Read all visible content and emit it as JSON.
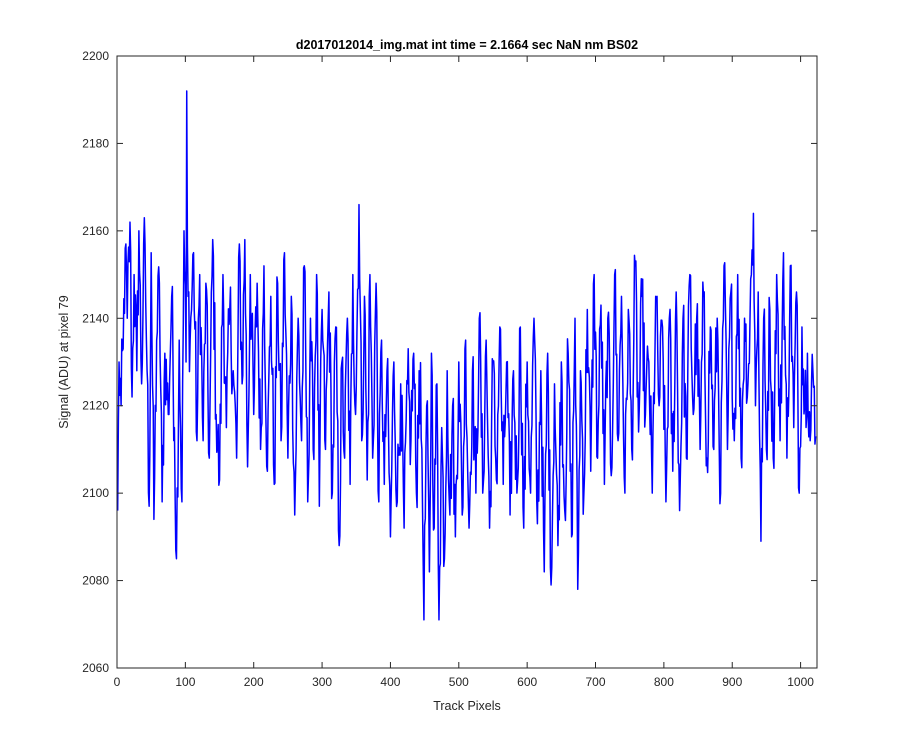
{
  "chart_data": {
    "type": "line",
    "title": "d2017012014_img.mat int time = 2.1664 sec  NaN nm BS02",
    "xlabel": "Track Pixels",
    "ylabel": "Signal (ADU) at pixel 79",
    "xlim": [
      0,
      1024
    ],
    "ylim": [
      2060,
      2200
    ],
    "x_ticks": [
      0,
      100,
      200,
      300,
      400,
      500,
      600,
      700,
      800,
      900,
      1000
    ],
    "y_ticks": [
      2060,
      2080,
      2100,
      2120,
      2140,
      2160,
      2180,
      2200
    ],
    "grid": false,
    "box": true,
    "series": [
      {
        "color": "#0000ff",
        "x_start": 1,
        "x_step": 1,
        "anchors": [
          [
            1,
            2096
          ],
          [
            3,
            2130
          ],
          [
            6,
            2120
          ],
          [
            9,
            2133
          ],
          [
            12,
            2156
          ],
          [
            15,
            2140
          ],
          [
            19,
            2162
          ],
          [
            22,
            2122
          ],
          [
            25,
            2150
          ],
          [
            29,
            2128
          ],
          [
            32,
            2160
          ],
          [
            36,
            2125
          ],
          [
            40,
            2163
          ],
          [
            44,
            2128
          ],
          [
            47,
            2097
          ],
          [
            50,
            2155
          ],
          [
            54,
            2094
          ],
          [
            58,
            2135
          ],
          [
            62,
            2148
          ],
          [
            66,
            2098
          ],
          [
            70,
            2132
          ],
          [
            75,
            2118
          ],
          [
            80,
            2145
          ],
          [
            84,
            2115
          ],
          [
            87,
            2085
          ],
          [
            91,
            2135
          ],
          [
            95,
            2098
          ],
          [
            98,
            2160
          ],
          [
            101,
            2130
          ],
          [
            102,
            2192
          ],
          [
            104,
            2145
          ],
          [
            107,
            2135
          ],
          [
            112,
            2155
          ],
          [
            117,
            2112
          ],
          [
            121,
            2150
          ],
          [
            126,
            2112
          ],
          [
            130,
            2148
          ],
          [
            135,
            2108
          ],
          [
            140,
            2158
          ],
          [
            145,
            2118
          ],
          [
            150,
            2103
          ],
          [
            155,
            2150
          ],
          [
            160,
            2115
          ],
          [
            165,
            2142
          ],
          [
            170,
            2128
          ],
          [
            175,
            2108
          ],
          [
            179,
            2157
          ],
          [
            183,
            2125
          ],
          [
            187,
            2158
          ],
          [
            191,
            2106
          ],
          [
            195,
            2150
          ],
          [
            200,
            2118
          ],
          [
            205,
            2148
          ],
          [
            210,
            2110
          ],
          [
            215,
            2152
          ],
          [
            220,
            2105
          ],
          [
            225,
            2145
          ],
          [
            230,
            2102
          ],
          [
            235,
            2148
          ],
          [
            240,
            2112
          ],
          [
            245,
            2155
          ],
          [
            250,
            2108
          ],
          [
            255,
            2145
          ],
          [
            260,
            2095
          ],
          [
            265,
            2140
          ],
          [
            270,
            2112
          ],
          [
            274,
            2152
          ],
          [
            279,
            2098
          ],
          [
            283,
            2140
          ],
          [
            287,
            2110
          ],
          [
            292,
            2150
          ],
          [
            296,
            2097
          ],
          [
            300,
            2142
          ],
          [
            305,
            2110
          ],
          [
            310,
            2146
          ],
          [
            315,
            2100
          ],
          [
            320,
            2138
          ],
          [
            325,
            2088
          ],
          [
            329,
            2130
          ],
          [
            333,
            2108
          ],
          [
            337,
            2140
          ],
          [
            341,
            2102
          ],
          [
            345,
            2150
          ],
          [
            349,
            2118
          ],
          [
            354,
            2166
          ],
          [
            358,
            2112
          ],
          [
            362,
            2145
          ],
          [
            366,
            2103
          ],
          [
            370,
            2150
          ],
          [
            374,
            2108
          ],
          [
            379,
            2148
          ],
          [
            383,
            2098
          ],
          [
            387,
            2135
          ],
          [
            391,
            2102
          ],
          [
            395,
            2128
          ],
          [
            400,
            2090
          ],
          [
            405,
            2130
          ],
          [
            410,
            2098
          ],
          [
            415,
            2125
          ],
          [
            420,
            2092
          ],
          [
            425,
            2125
          ],
          [
            430,
            2112
          ],
          [
            434,
            2132
          ],
          [
            438,
            2100
          ],
          [
            442,
            2128
          ],
          [
            446,
            2110
          ],
          [
            449,
            2071
          ],
          [
            453,
            2120
          ],
          [
            457,
            2082
          ],
          [
            460,
            2132
          ],
          [
            464,
            2092
          ],
          [
            468,
            2125
          ],
          [
            471,
            2071
          ],
          [
            475,
            2115
          ],
          [
            479,
            2085
          ],
          [
            483,
            2128
          ],
          [
            487,
            2095
          ],
          [
            491,
            2120
          ],
          [
            495,
            2090
          ],
          [
            500,
            2130
          ],
          [
            505,
            2095
          ],
          [
            510,
            2135
          ],
          [
            515,
            2092
          ],
          [
            520,
            2128
          ],
          [
            525,
            2100
          ],
          [
            530,
            2140
          ],
          [
            535,
            2100
          ],
          [
            540,
            2135
          ],
          [
            545,
            2092
          ],
          [
            550,
            2130
          ],
          [
            555,
            2103
          ],
          [
            560,
            2138
          ],
          [
            565,
            2102
          ],
          [
            570,
            2130
          ],
          [
            575,
            2095
          ],
          [
            580,
            2128
          ],
          [
            585,
            2100
          ],
          [
            590,
            2138
          ],
          [
            595,
            2092
          ],
          [
            600,
            2130
          ],
          [
            605,
            2100
          ],
          [
            610,
            2140
          ],
          [
            615,
            2093
          ],
          [
            620,
            2128
          ],
          [
            625,
            2082
          ],
          [
            630,
            2132
          ],
          [
            635,
            2079
          ],
          [
            640,
            2125
          ],
          [
            645,
            2088
          ],
          [
            650,
            2130
          ],
          [
            655,
            2096
          ],
          [
            660,
            2132
          ],
          [
            665,
            2090
          ],
          [
            670,
            2140
          ],
          [
            674,
            2078
          ],
          [
            678,
            2128
          ],
          [
            683,
            2100
          ],
          [
            688,
            2142
          ],
          [
            693,
            2105
          ],
          [
            698,
            2150
          ],
          [
            703,
            2108
          ],
          [
            708,
            2143
          ],
          [
            713,
            2102
          ],
          [
            718,
            2140
          ],
          [
            723,
            2104
          ],
          [
            728,
            2150
          ],
          [
            733,
            2112
          ],
          [
            738,
            2145
          ],
          [
            743,
            2100
          ],
          [
            748,
            2142
          ],
          [
            753,
            2110
          ],
          [
            758,
            2152
          ],
          [
            763,
            2114
          ],
          [
            768,
            2145
          ],
          [
            773,
            2118
          ],
          [
            778,
            2130
          ],
          [
            783,
            2100
          ],
          [
            788,
            2145
          ],
          [
            793,
            2120
          ],
          [
            798,
            2138
          ],
          [
            803,
            2098
          ],
          [
            808,
            2140
          ],
          [
            813,
            2105
          ],
          [
            818,
            2146
          ],
          [
            823,
            2096
          ],
          [
            828,
            2140
          ],
          [
            833,
            2108
          ],
          [
            838,
            2150
          ],
          [
            843,
            2118
          ],
          [
            848,
            2140
          ],
          [
            853,
            2110
          ],
          [
            858,
            2145
          ],
          [
            863,
            2108
          ],
          [
            868,
            2138
          ],
          [
            873,
            2110
          ],
          [
            878,
            2140
          ],
          [
            883,
            2100
          ],
          [
            888,
            2152
          ],
          [
            893,
            2110
          ],
          [
            898,
            2146
          ],
          [
            903,
            2112
          ],
          [
            908,
            2150
          ],
          [
            913,
            2108
          ],
          [
            918,
            2140
          ],
          [
            923,
            2125
          ],
          [
            928,
            2150
          ],
          [
            931,
            2164
          ],
          [
            934,
            2120
          ],
          [
            938,
            2146
          ],
          [
            942,
            2089
          ],
          [
            946,
            2140
          ],
          [
            950,
            2110
          ],
          [
            955,
            2142
          ],
          [
            960,
            2108
          ],
          [
            965,
            2150
          ],
          [
            970,
            2112
          ],
          [
            975,
            2155
          ],
          [
            980,
            2108
          ],
          [
            985,
            2152
          ],
          [
            990,
            2115
          ],
          [
            994,
            2146
          ],
          [
            998,
            2100
          ],
          [
            1002,
            2138
          ],
          [
            1006,
            2120
          ],
          [
            1010,
            2132
          ],
          [
            1014,
            2112
          ],
          [
            1018,
            2128
          ],
          [
            1022,
            2113
          ]
        ]
      }
    ]
  }
}
